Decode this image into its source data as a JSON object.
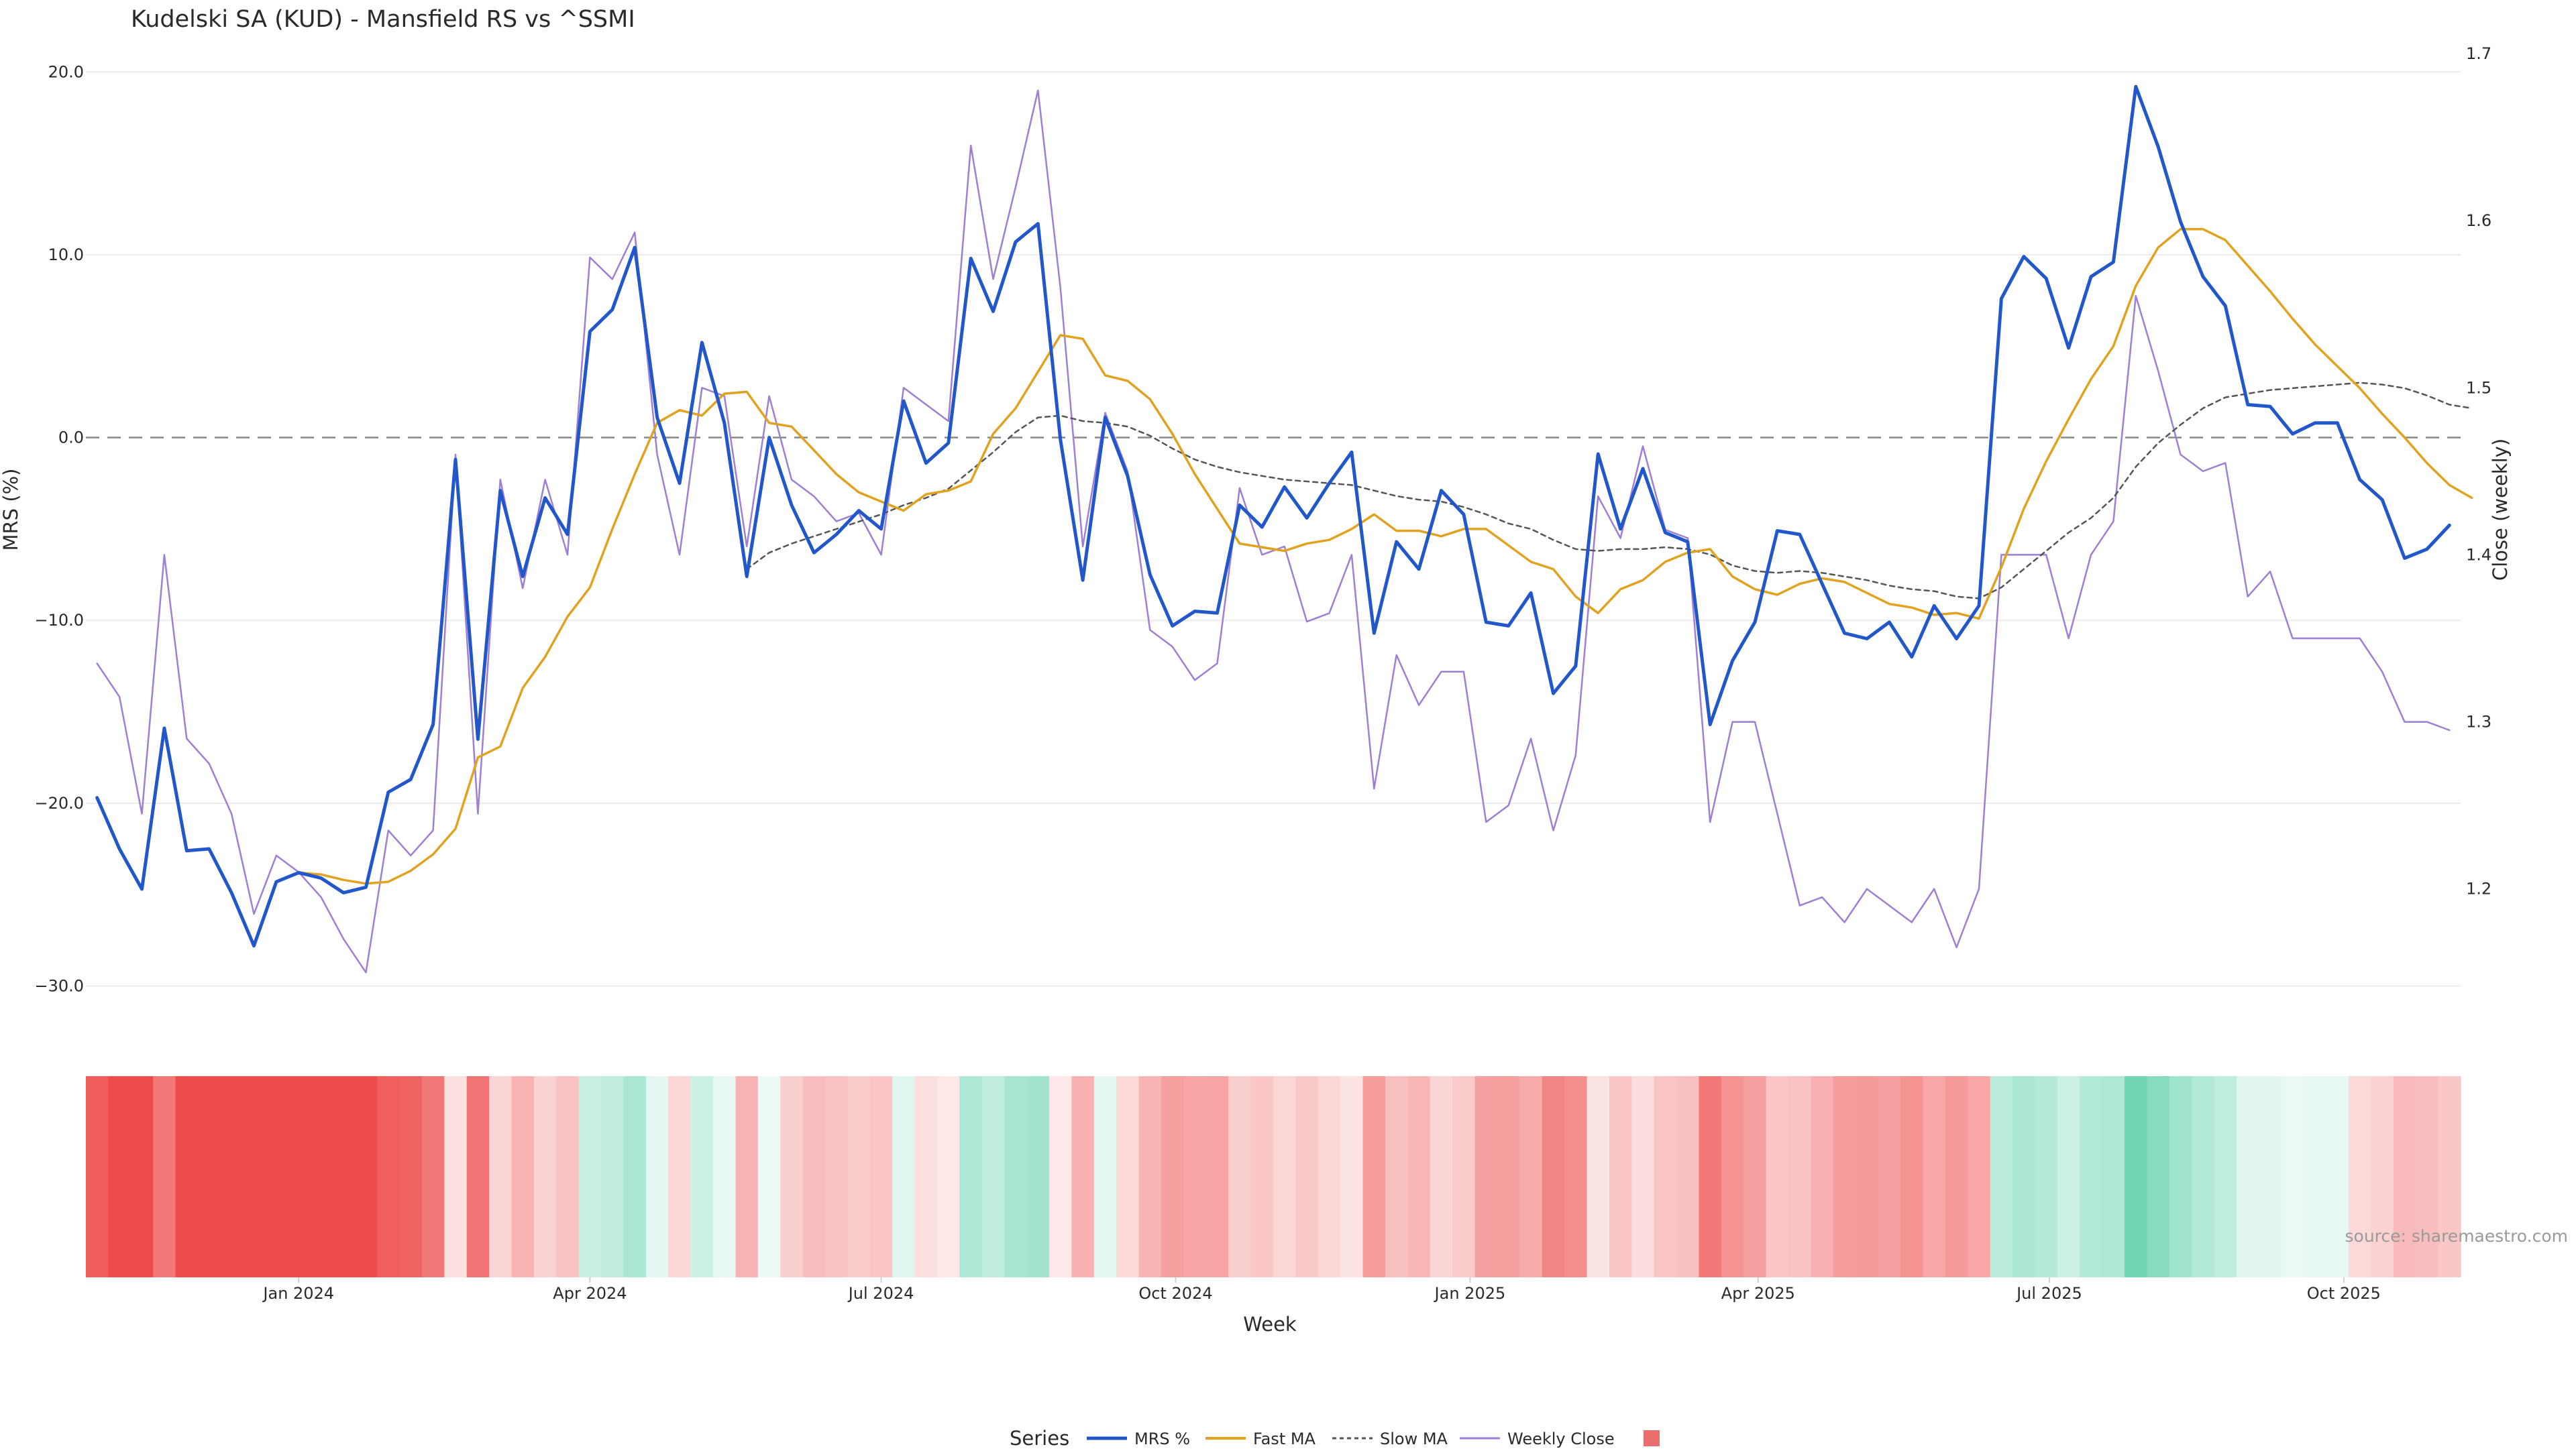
{
  "chart_data": {
    "type": "line",
    "title": "Kudelski SA (KUD) - Mansfield RS vs ^SSMI",
    "xlabel": "Week",
    "ylabel": "MRS (%)",
    "y2label": "Close (weekly)",
    "source": "source: sharemaestro.com",
    "ylim": [
      -32,
      21
    ],
    "y2lim": [
      1.12,
      1.7
    ],
    "y_ticks": [
      "20.0",
      "10.0",
      "0.0",
      "−10.0",
      "−20.0",
      "−30.0"
    ],
    "y2_ticks": [
      "1.7",
      "1.6",
      "1.5",
      "1.4",
      "1.3",
      "1.2"
    ],
    "x_ticks": [
      "Jan 2024",
      "Apr 2024",
      "Jul 2024",
      "Oct 2024",
      "Jan 2025",
      "Apr 2025",
      "Jul 2025",
      "Oct 2025"
    ],
    "x_start": "2023-10-30",
    "zero_line": true,
    "legend": {
      "title": "Series",
      "position": "bottom",
      "entries": [
        "MRS %",
        "Fast MA",
        "Slow MA",
        "Weekly Close",
        ""
      ]
    },
    "colors": {
      "mrs": "#2257cc",
      "fast_ma": "#e0a21f",
      "slow_ma": "#555555",
      "close": "#9f7fd4",
      "zero_line": "#888888",
      "heat_negative": "#ee4b4b",
      "heat_positive": "#5fd0ad"
    },
    "series": [
      {
        "name": "MRS %",
        "key": "mrs",
        "values": [
          -19.7,
          -22.5,
          -24.7,
          -15.9,
          -22.6,
          -22.5,
          -24.9,
          -27.8,
          -24.3,
          -23.8,
          -24.1,
          -24.9,
          -24.6,
          -19.4,
          -18.7,
          -15.7,
          -1.2,
          -16.5,
          -2.9,
          -7.6,
          -3.3,
          -5.3,
          5.8,
          7.0,
          10.4,
          1.1,
          -2.5,
          5.2,
          0.8,
          -7.6,
          0.0,
          -3.7,
          -6.3,
          -5.3,
          -4.0,
          -5.0,
          2.0,
          -1.4,
          -0.3,
          9.8,
          6.9,
          10.7,
          11.7,
          -0.1,
          -7.8,
          1.1,
          -2.1,
          -7.5,
          -10.3,
          -9.5,
          -9.6,
          -3.7,
          -4.9,
          -2.7,
          -4.4,
          -2.5,
          -0.8,
          -10.7,
          -5.7,
          -7.2,
          -2.9,
          -4.2,
          -10.1,
          -10.3,
          -8.5,
          -14.0,
          -12.5,
          -0.9,
          -5.0,
          -1.7,
          -5.2,
          -5.7,
          -15.7,
          -12.2,
          -10.1,
          -5.1,
          -5.3,
          -8.0,
          -10.7,
          -11.0,
          -10.1,
          -12.0,
          -9.2,
          -11.0,
          -9.2,
          7.6,
          9.9,
          8.7,
          4.9,
          8.8,
          9.6,
          19.2,
          15.9,
          11.8,
          8.8,
          7.2,
          1.8,
          1.7,
          0.2,
          0.8,
          0.8,
          -2.3,
          -3.4,
          -6.6,
          -6.1,
          -4.8
        ]
      },
      {
        "name": "Fast MA",
        "key": "fast_ma",
        "values": [
          null,
          null,
          null,
          null,
          null,
          null,
          null,
          null,
          null,
          -23.8,
          -23.9,
          -24.2,
          -24.4,
          -24.3,
          -23.7,
          -22.8,
          -21.4,
          -17.5,
          -16.9,
          -13.7,
          -12.0,
          -9.8,
          -8.2,
          -5.0,
          -2.0,
          0.8,
          1.5,
          1.2,
          2.4,
          2.5,
          0.8,
          0.6,
          -0.7,
          -2.0,
          -3.0,
          -3.5,
          -4.0,
          -3.1,
          -2.9,
          -2.4,
          0.2,
          1.6,
          3.6,
          5.6,
          5.4,
          3.4,
          3.1,
          2.1,
          0.2,
          -2.0,
          -3.9,
          -5.8,
          -6.0,
          -6.2,
          -5.8,
          -5.6,
          -5.0,
          -4.2,
          -5.1,
          -5.1,
          -5.4,
          -5.0,
          -5.0,
          -5.9,
          -6.8,
          -7.2,
          -8.7,
          -9.6,
          -8.3,
          -7.8,
          -6.8,
          -6.3,
          -6.1,
          -7.6,
          -8.3,
          -8.6,
          -8.0,
          -7.7,
          -7.9,
          -8.5,
          -9.1,
          -9.3,
          -9.7,
          -9.6,
          -9.9,
          -7.1,
          -3.9,
          -1.3,
          1.0,
          3.2,
          5.0,
          8.3,
          10.4,
          11.4,
          11.4,
          10.8,
          9.4,
          8.0,
          6.5,
          5.1,
          3.9,
          2.7,
          1.3,
          0.0,
          -1.4,
          -2.6,
          -3.3
        ]
      },
      {
        "name": "Slow MA",
        "key": "slow_ma",
        "values": [
          null,
          null,
          null,
          null,
          null,
          null,
          null,
          null,
          null,
          null,
          null,
          null,
          null,
          null,
          null,
          null,
          null,
          null,
          null,
          null,
          null,
          null,
          null,
          null,
          null,
          null,
          null,
          null,
          null,
          -7.2,
          -6.3,
          -5.8,
          -5.4,
          -5.0,
          -4.6,
          -4.2,
          -3.7,
          -3.3,
          -2.8,
          -1.8,
          -0.8,
          0.3,
          1.1,
          1.2,
          0.9,
          0.8,
          0.6,
          0.1,
          -0.6,
          -1.2,
          -1.6,
          -1.9,
          -2.1,
          -2.3,
          -2.4,
          -2.5,
          -2.6,
          -2.9,
          -3.2,
          -3.4,
          -3.5,
          -3.8,
          -4.2,
          -4.7,
          -5.0,
          -5.6,
          -6.1,
          -6.2,
          -6.1,
          -6.1,
          -6.0,
          -6.1,
          -6.4,
          -7.0,
          -7.3,
          -7.4,
          -7.3,
          -7.4,
          -7.6,
          -7.8,
          -8.1,
          -8.3,
          -8.4,
          -8.7,
          -8.8,
          -8.2,
          -7.2,
          -6.2,
          -5.2,
          -4.4,
          -3.3,
          -1.6,
          -0.3,
          0.7,
          1.6,
          2.2,
          2.4,
          2.6,
          2.7,
          2.8,
          2.9,
          3.0,
          2.9,
          2.7,
          2.3,
          1.8,
          1.6
        ]
      },
      {
        "name": "Weekly Close",
        "key": "close",
        "axis": "right",
        "values": [
          1.335,
          1.315,
          1.245,
          1.4,
          1.29,
          1.275,
          1.245,
          1.185,
          1.22,
          1.21,
          1.195,
          1.17,
          1.15,
          1.235,
          1.22,
          1.235,
          1.46,
          1.245,
          1.445,
          1.38,
          1.445,
          1.4,
          1.578,
          1.565,
          1.593,
          1.46,
          1.4,
          1.5,
          1.495,
          1.405,
          1.495,
          1.445,
          1.435,
          1.42,
          1.425,
          1.4,
          1.5,
          1.49,
          1.48,
          1.645,
          1.565,
          1.62,
          1.678,
          1.56,
          1.405,
          1.485,
          1.45,
          1.355,
          1.345,
          1.325,
          1.335,
          1.44,
          1.4,
          1.405,
          1.36,
          1.365,
          1.4,
          1.26,
          1.34,
          1.31,
          1.33,
          1.33,
          1.24,
          1.25,
          1.29,
          1.235,
          1.28,
          1.435,
          1.41,
          1.465,
          1.415,
          1.41,
          1.24,
          1.3,
          1.3,
          1.245,
          1.19,
          1.195,
          1.18,
          1.2,
          1.19,
          1.18,
          1.2,
          1.165,
          1.2,
          1.4,
          1.4,
          1.4,
          1.35,
          1.4,
          1.42,
          1.555,
          1.51,
          1.46,
          1.45,
          1.455,
          1.375,
          1.39,
          1.35,
          1.35,
          1.35,
          1.35,
          1.33,
          1.3,
          1.3,
          1.295
        ]
      }
    ]
  }
}
